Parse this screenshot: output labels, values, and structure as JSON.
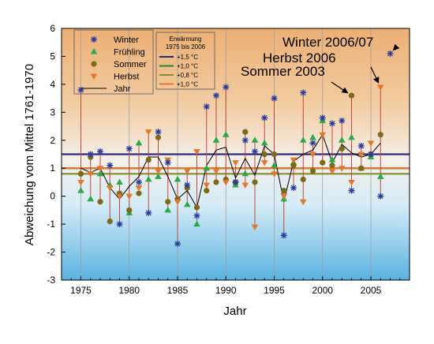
{
  "chart_data": {
    "type": "scatter",
    "xlabel": "Jahr",
    "ylabel": "Abweichung vom Mittel 1761-1970",
    "xlim": [
      1973,
      2009
    ],
    "ylim": [
      -3,
      6
    ],
    "xticks": [
      1975,
      1980,
      1985,
      1990,
      1995,
      2000,
      2005
    ],
    "yticks": [
      -3,
      -2,
      -1,
      0,
      1,
      2,
      3,
      4,
      5,
      6
    ],
    "background": "vertical gradient, orange at top to blue at bottom",
    "series": [
      {
        "name": "Winter",
        "marker": "asterisk",
        "color": "#2a3a9a",
        "x": [
          1975,
          1976,
          1977,
          1978,
          1979,
          1980,
          1981,
          1982,
          1983,
          1984,
          1985,
          1986,
          1987,
          1988,
          1989,
          1990,
          1991,
          1992,
          1993,
          1994,
          1995,
          1996,
          1997,
          1998,
          1999,
          2000,
          2001,
          2002,
          2003,
          2004,
          2005,
          2006,
          2007
        ],
        "values": [
          3.8,
          1.5,
          1.6,
          1.1,
          -1.0,
          1.7,
          0.5,
          -0.6,
          2.3,
          1.2,
          -1.7,
          0.4,
          -0.7,
          3.2,
          3.6,
          3.9,
          0.5,
          2.0,
          1.6,
          2.8,
          3.5,
          -1.4,
          0.3,
          3.7,
          1.9,
          2.8,
          2.6,
          2.7,
          0.2,
          1.8,
          1.5,
          0.0,
          5.1
        ]
      },
      {
        "name": "Frühling",
        "marker": "triangle-up",
        "color": "#2aa84a",
        "x": [
          1975,
          1976,
          1977,
          1978,
          1979,
          1980,
          1981,
          1982,
          1983,
          1984,
          1985,
          1986,
          1987,
          1988,
          1989,
          1990,
          1991,
          1992,
          1993,
          1994,
          1995,
          1996,
          1997,
          1998,
          1999,
          2000,
          2001,
          2002,
          2003,
          2004,
          2005,
          2006
        ],
        "values": [
          0.2,
          -0.1,
          0.8,
          0.4,
          0.5,
          -0.6,
          1.9,
          0.6,
          0.7,
          -0.5,
          0.6,
          -0.3,
          -1.0,
          1.0,
          2.0,
          2.2,
          0.4,
          0.8,
          2.0,
          1.9,
          1.1,
          -0.1,
          1.2,
          2.0,
          2.1,
          2.7,
          1.3,
          2.0,
          2.1,
          1.0,
          1.4,
          0.7
        ]
      },
      {
        "name": "Sommer",
        "marker": "circle",
        "color": "#7a6a1a",
        "x": [
          1975,
          1976,
          1977,
          1978,
          1979,
          1980,
          1981,
          1982,
          1983,
          1984,
          1985,
          1986,
          1987,
          1988,
          1989,
          1990,
          1991,
          1992,
          1993,
          1994,
          1995,
          1996,
          1997,
          1998,
          1999,
          2000,
          2001,
          2002,
          2003,
          2004,
          2005,
          2006
        ],
        "values": [
          0.8,
          1.4,
          -0.2,
          -0.9,
          0.1,
          -0.5,
          0.1,
          1.3,
          2.1,
          -0.2,
          -0.1,
          0.3,
          -0.4,
          0.2,
          0.5,
          0.6,
          0.5,
          2.3,
          0.5,
          1.5,
          1.5,
          0.2,
          1.1,
          0.6,
          0.9,
          1.2,
          1.1,
          1.7,
          3.6,
          1.0,
          1.5,
          2.2
        ]
      },
      {
        "name": "Herbst",
        "marker": "triangle-down",
        "color": "#e07830",
        "x": [
          1975,
          1976,
          1977,
          1978,
          1979,
          1980,
          1981,
          1982,
          1983,
          1984,
          1985,
          1986,
          1987,
          1988,
          1989,
          1990,
          1991,
          1992,
          1993,
          1994,
          1995,
          1996,
          1997,
          1998,
          1999,
          2000,
          2001,
          2002,
          2003,
          2004,
          2005,
          2006
        ],
        "values": [
          0.5,
          0.8,
          1.0,
          0.3,
          0.0,
          0.0,
          0.3,
          2.3,
          0.9,
          1.3,
          -0.2,
          0.9,
          1.6,
          0.4,
          0.9,
          0.5,
          1.2,
          0.4,
          -1.1,
          1.2,
          0.8,
          0.0,
          1.3,
          -0.2,
          1.5,
          2.2,
          0.9,
          1.0,
          0.5,
          1.5,
          1.9,
          3.9
        ]
      },
      {
        "name": "Jahr",
        "type": "line",
        "color": "#000000",
        "x": [
          1975,
          1976,
          1977,
          1978,
          1979,
          1980,
          1981,
          1982,
          1983,
          1984,
          1985,
          1986,
          1987,
          1988,
          1989,
          1990,
          1991,
          1992,
          1993,
          1994,
          1995,
          1996,
          1997,
          1998,
          1999,
          2000,
          2001,
          2002,
          2003,
          2004,
          2005,
          2006
        ],
        "values": [
          1.0,
          0.85,
          1.0,
          0.3,
          -0.1,
          0.35,
          0.7,
          1.4,
          1.4,
          0.7,
          -0.1,
          0.2,
          -0.4,
          1.1,
          1.65,
          1.75,
          0.65,
          1.35,
          0.75,
          1.8,
          1.5,
          -0.2,
          1.25,
          1.5,
          1.65,
          2.2,
          1.2,
          1.85,
          1.55,
          1.4,
          1.5,
          1.9
        ]
      }
    ],
    "warming_lines": {
      "title": "Erwärmung",
      "subtitle": "1975 bis 2006",
      "items": [
        {
          "label": "+1,5 °C",
          "value": 1.5,
          "color": "#2a2a7a"
        },
        {
          "label": "+1,0 °C",
          "value": 1.0,
          "color": "#1e8a30"
        },
        {
          "label": "+0,8 °C",
          "value": 0.8,
          "color": "#8a8a30"
        },
        {
          "label": "+1,0 °C",
          "value": 1.0,
          "color": "#e07830"
        }
      ]
    },
    "annotations": [
      {
        "text": "Winter 2006/07",
        "points_to": [
          2007,
          5.1
        ]
      },
      {
        "text": "Herbst 2006",
        "points_to": [
          2006,
          3.9
        ]
      },
      {
        "text": "Sommer 2003",
        "points_to": [
          2003,
          3.6
        ]
      }
    ],
    "legend_position": "top-left"
  }
}
